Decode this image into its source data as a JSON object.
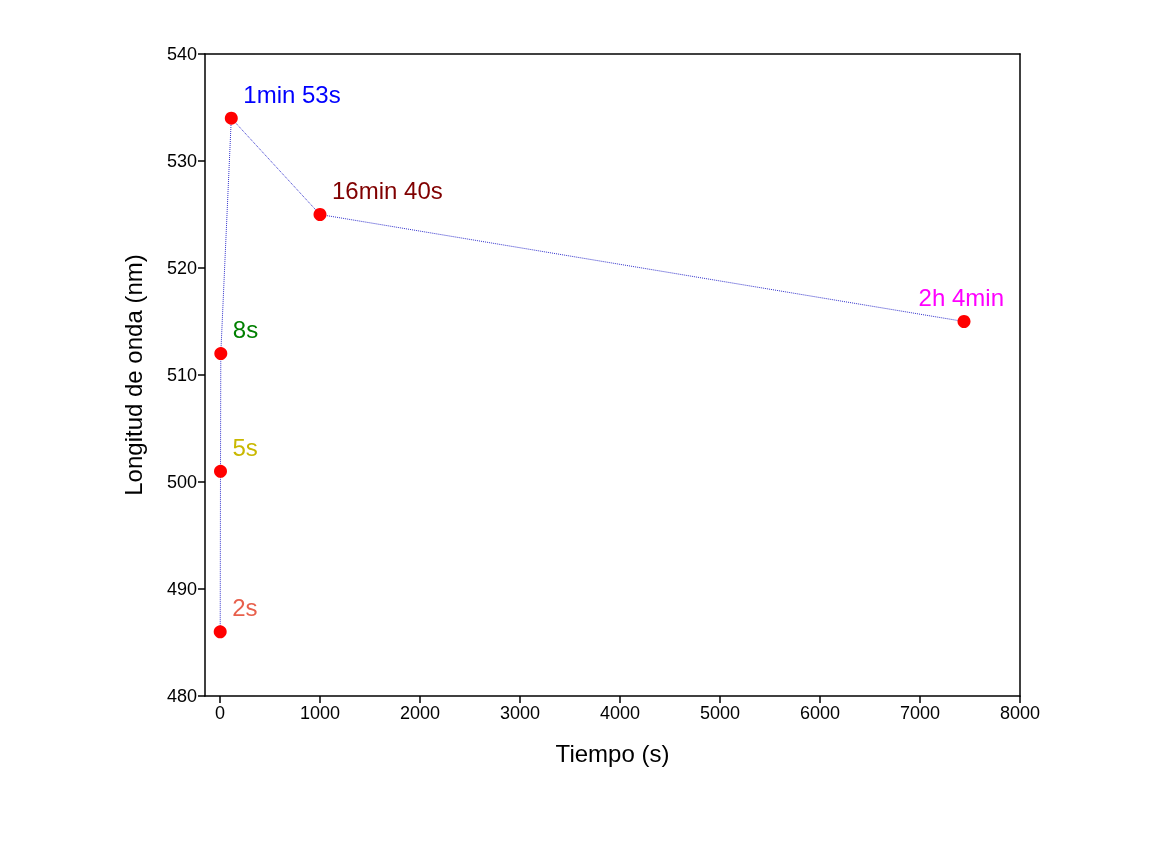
{
  "chart_data": {
    "type": "line",
    "xlabel": "Tiempo (s)",
    "ylabel": "Longitud de onda (nm)",
    "x": [
      2,
      5,
      8,
      113,
      1000,
      7440
    ],
    "series": [
      {
        "color": "#ff0000",
        "values": [
          486,
          501,
          512,
          534,
          525,
          515
        ]
      }
    ],
    "xlim": [
      -150,
      8000
    ],
    "xticks": [
      0,
      1000,
      2000,
      3000,
      4000,
      5000,
      6000,
      7000,
      8000
    ],
    "ylim": [
      480,
      540
    ],
    "yticks": [
      480,
      490,
      500,
      510,
      520,
      530,
      540
    ],
    "grid": false,
    "marker": "circle",
    "line_style": "dotted",
    "annotations": [
      {
        "text": "2s",
        "x": 2,
        "y": 486
      },
      {
        "text": "5s",
        "x": 5,
        "y": 501
      },
      {
        "text": "8s",
        "x": 8,
        "y": 512
      },
      {
        "text": "1min 53s",
        "x": 113,
        "y": 534
      },
      {
        "text": "16min 40s",
        "x": 1000,
        "y": 525
      },
      {
        "text": "2h 4min",
        "x": 7440,
        "y": 515
      }
    ]
  }
}
